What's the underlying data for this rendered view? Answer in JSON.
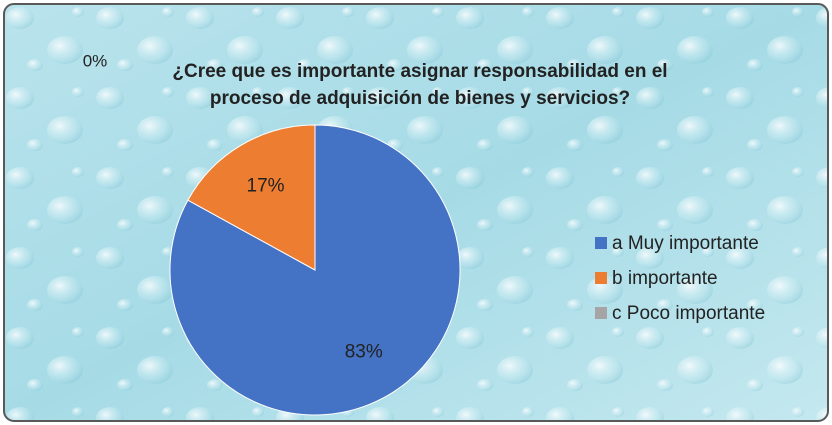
{
  "chart_data": {
    "type": "pie",
    "title": "¿Cree que es importante asignar responsabilidad en el proceso de adquisición de bienes y servicios?",
    "categories": [
      "a Muy importante",
      "b importante",
      "c Poco importante"
    ],
    "values": [
      83,
      17,
      0
    ],
    "value_labels": [
      "83%",
      "17%",
      "0%"
    ],
    "colors": [
      "#4472c4",
      "#ed7d31",
      "#a5a5a5"
    ],
    "legend": "right"
  }
}
